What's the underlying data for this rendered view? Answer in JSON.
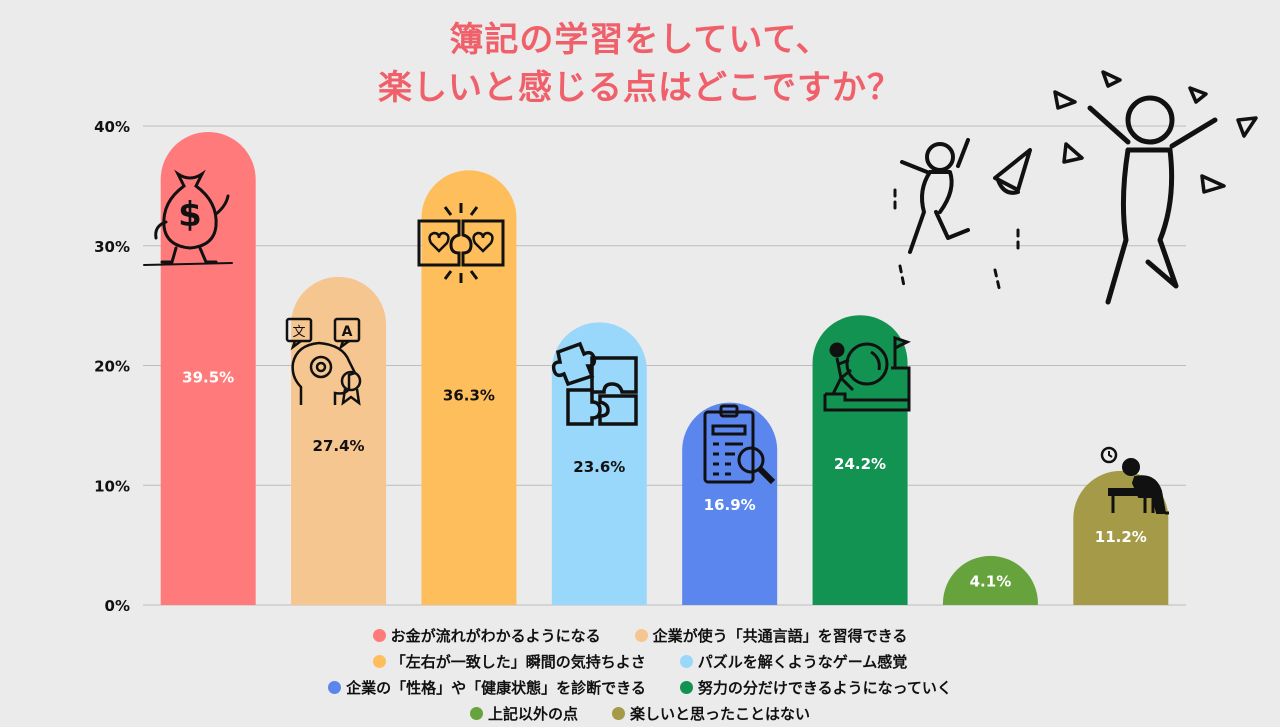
{
  "title_line1": "簿記の学習をしていて、",
  "title_line2": "楽しいと感じる点はどこですか？",
  "chart_data": {
    "type": "bar",
    "title": "簿記の学習をしていて、楽しいと感じる点はどこですか？",
    "categories": [
      "お金が流れがわかるようになる",
      "企業が使う「共通言語」を習得できる",
      "「左右が一致した」瞬間の気持ちよさ",
      "パズルを解くようなゲーム感覚",
      "企業の「性格」や「健康状態」を診断できる",
      "努力の分だけできるようになっていく",
      "上記以外の点",
      "楽しいと思ったことはない"
    ],
    "values": [
      39.5,
      27.4,
      36.3,
      23.6,
      16.9,
      24.2,
      4.1,
      11.2
    ],
    "value_labels": [
      "39.5%",
      "27.4%",
      "36.3%",
      "23.6%",
      "16.9%",
      "24.2%",
      "4.1%",
      "11.2%"
    ],
    "colors": [
      "#ff7b7b",
      "#f6c690",
      "#ffbe5c",
      "#99d8fa",
      "#5b86ee",
      "#129352",
      "#66a33c",
      "#a49a48"
    ],
    "label_colors": [
      "#ffffff",
      "#111111",
      "#111111",
      "#111111",
      "#ffffff",
      "#ffffff",
      "#ffffff",
      "#ffffff"
    ],
    "y_ticks": [
      "0%",
      "10%",
      "20%",
      "30%",
      "40%"
    ],
    "y_tick_values": [
      0,
      10,
      20,
      30,
      40
    ],
    "ylim": [
      0,
      40
    ],
    "grid": true,
    "legend_position": "bottom"
  },
  "icons": [
    "money-bag-icon",
    "translate-head-icon",
    "puzzle-heart-icon",
    "puzzle-icon",
    "clipboard-search-icon",
    "push-boulder-icon",
    "",
    "tired-desk-icon"
  ]
}
